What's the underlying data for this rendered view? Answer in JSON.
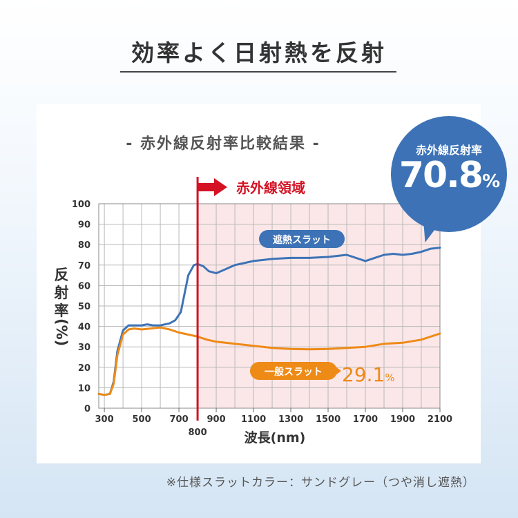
{
  "heading": "効率よく日射熱を反射",
  "subtitle": "- 赤外線反射率比較結果 -",
  "badge": {
    "label": "赤外線反射率",
    "value": "70.8",
    "unit": "%"
  },
  "ylabel_chars": [
    "反",
    "射",
    "率",
    "(%)"
  ],
  "footnote": "※仕様スラットカラー：サンドグレー（つや消し遮熱）",
  "colors": {
    "blue": "#3d73b6",
    "orange": "#ee8a16",
    "red": "#d41224",
    "ir_region": "#fbe7e8",
    "grid": "#b8b8b8"
  },
  "chart_data": {
    "type": "line",
    "xlabel": "波長(nm)",
    "ylabel": "反射率(%)",
    "xlim": [
      270,
      2100
    ],
    "ylim": [
      0,
      100
    ],
    "x_ticks": [
      "300",
      "500",
      "700",
      "800",
      "900",
      "1100",
      "1300",
      "1500",
      "1700",
      "1900",
      "2100"
    ],
    "y_ticks": [
      "0",
      "10",
      "20",
      "30",
      "40",
      "50",
      "60",
      "70",
      "80",
      "90",
      "100"
    ],
    "marker": {
      "x": 800,
      "label": "赤外線領域"
    },
    "series": [
      {
        "name": "遮熱スラット",
        "color": "#3d73b6",
        "points": [
          [
            270,
            7
          ],
          [
            300,
            6.5
          ],
          [
            330,
            7
          ],
          [
            350,
            13
          ],
          [
            370,
            28
          ],
          [
            400,
            38
          ],
          [
            430,
            40.5
          ],
          [
            460,
            40.5
          ],
          [
            500,
            40.5
          ],
          [
            530,
            41
          ],
          [
            560,
            40.5
          ],
          [
            600,
            40.5
          ],
          [
            650,
            41.5
          ],
          [
            680,
            43
          ],
          [
            710,
            47
          ],
          [
            730,
            56
          ],
          [
            750,
            65
          ],
          [
            780,
            70
          ],
          [
            800,
            70.5
          ],
          [
            830,
            69.5
          ],
          [
            860,
            67
          ],
          [
            900,
            66
          ],
          [
            950,
            68
          ],
          [
            1000,
            70
          ],
          [
            1100,
            72
          ],
          [
            1200,
            73
          ],
          [
            1300,
            73.5
          ],
          [
            1400,
            73.5
          ],
          [
            1500,
            74
          ],
          [
            1600,
            75
          ],
          [
            1700,
            72
          ],
          [
            1750,
            73.5
          ],
          [
            1800,
            75
          ],
          [
            1850,
            75.5
          ],
          [
            1900,
            75
          ],
          [
            1950,
            75.5
          ],
          [
            2000,
            76.5
          ],
          [
            2050,
            78
          ],
          [
            2100,
            78.5
          ]
        ]
      },
      {
        "name": "一般スラット",
        "color": "#ee8a16",
        "value_label": "29.1",
        "value_unit": "%",
        "points": [
          [
            270,
            7
          ],
          [
            300,
            6.5
          ],
          [
            330,
            7
          ],
          [
            350,
            12
          ],
          [
            370,
            26
          ],
          [
            400,
            36
          ],
          [
            430,
            38.5
          ],
          [
            460,
            39
          ],
          [
            500,
            38.5
          ],
          [
            550,
            39
          ],
          [
            600,
            39.5
          ],
          [
            650,
            38.5
          ],
          [
            700,
            37
          ],
          [
            750,
            36
          ],
          [
            800,
            35
          ],
          [
            850,
            33.5
          ],
          [
            900,
            32.5
          ],
          [
            1000,
            31.5
          ],
          [
            1100,
            30.5
          ],
          [
            1200,
            29.5
          ],
          [
            1300,
            29
          ],
          [
            1400,
            28.8
          ],
          [
            1500,
            29
          ],
          [
            1600,
            29.5
          ],
          [
            1700,
            30
          ],
          [
            1800,
            31.5
          ],
          [
            1900,
            32
          ],
          [
            2000,
            33.5
          ],
          [
            2100,
            36.5
          ]
        ]
      }
    ]
  }
}
